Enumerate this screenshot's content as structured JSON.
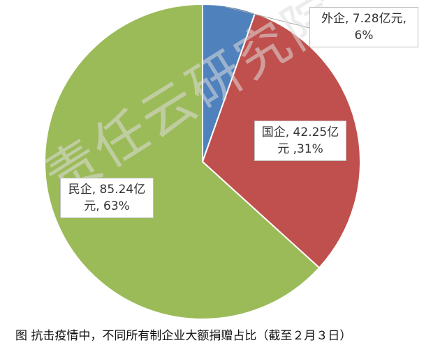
{
  "chart_data": {
    "type": "pie",
    "title": "",
    "series": [
      {
        "slices": [
          {
            "name": "外企",
            "value": 7.28,
            "percent": "6%",
            "label_line1": "外企, 7.28亿元,",
            "label_line2": "6%",
            "color": "#4f81bd"
          },
          {
            "name": "国企",
            "value": 42.25,
            "percent": "31%",
            "label_line1": "国企, 42.25亿",
            "label_line2": "元 ,31%",
            "color": "#c0504d"
          },
          {
            "name": "民企",
            "value": 85.24,
            "percent": "63%",
            "label_line1": "民企, 85.24亿",
            "label_line2": "元, 63%",
            "color": "#9bbb59"
          }
        ]
      }
    ]
  },
  "watermark": "责任云研究院",
  "caption": "图  抗击疫情中，不同所有制企业大额捐赠占比（截至２月３日）"
}
